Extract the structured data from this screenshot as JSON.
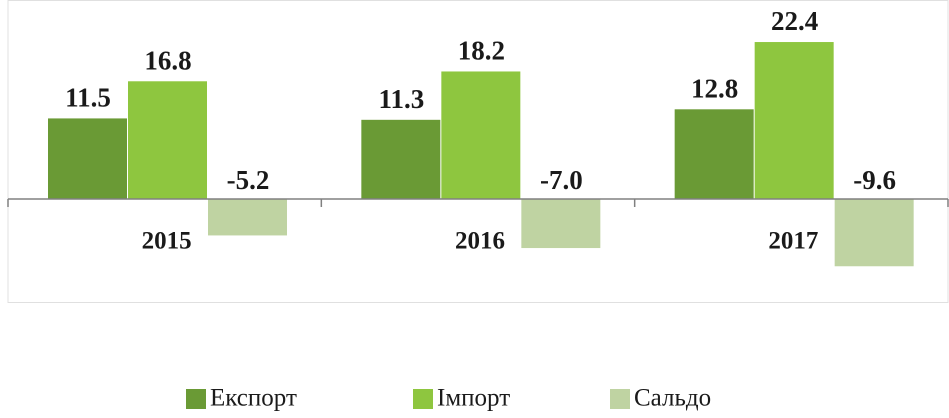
{
  "chart_data": {
    "type": "bar",
    "categories": [
      "2015",
      "2016",
      "2017"
    ],
    "series": [
      {
        "name": "Експорт",
        "color": "#6a9a35",
        "values": [
          11.5,
          11.3,
          12.8
        ]
      },
      {
        "name": "Імпорт",
        "color": "#8ec63f",
        "values": [
          16.8,
          18.2,
          22.4
        ]
      },
      {
        "name": "Сальдо",
        "color": "#bfd3a2",
        "values": [
          -5.2,
          -7.0,
          -9.6
        ],
        "value_labels": [
          "-5.2",
          "-7.0",
          "-9.6"
        ]
      }
    ],
    "ylim": [
      -14.7,
      28.4
    ],
    "legend": "bottom"
  }
}
